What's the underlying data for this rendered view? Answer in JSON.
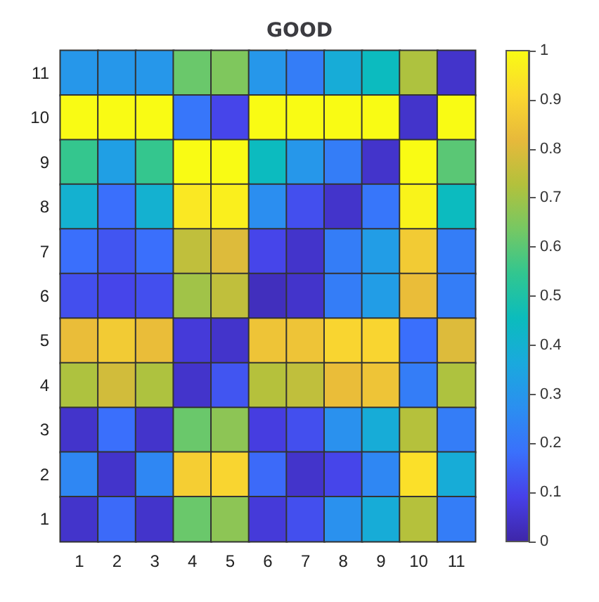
{
  "chart_data": {
    "type": "heatmap",
    "title": "GOOD",
    "categories": [
      "1",
      "2",
      "3",
      "4",
      "5",
      "6",
      "7",
      "8",
      "9",
      "10",
      "11"
    ],
    "y_categories": [
      "11",
      "10",
      "9",
      "8",
      "7",
      "6",
      "5",
      "4",
      "3",
      "2",
      "1"
    ],
    "cells": [
      [
        0.3,
        0.3,
        0.3,
        0.62,
        0.65,
        0.3,
        0.22,
        0.38,
        0.45,
        0.72,
        0.05
      ],
      [
        1,
        1,
        1,
        0.2,
        0.1,
        1,
        1,
        1,
        1,
        0.05,
        1
      ],
      [
        0.55,
        0.33,
        0.55,
        1,
        1,
        0.45,
        0.3,
        0.22,
        0.05,
        1,
        0.6
      ],
      [
        0.4,
        0.18,
        0.4,
        0.95,
        0.97,
        0.27,
        0.12,
        0.05,
        0.2,
        0.98,
        0.45
      ],
      [
        0.18,
        0.13,
        0.18,
        0.75,
        0.8,
        0.1,
        0.05,
        0.22,
        0.32,
        0.87,
        0.22
      ],
      [
        0.12,
        0.1,
        0.12,
        0.7,
        0.75,
        0.03,
        0.05,
        0.22,
        0.32,
        0.83,
        0.22
      ],
      [
        0.83,
        0.87,
        0.83,
        0.07,
        0.05,
        0.85,
        0.85,
        0.9,
        0.9,
        0.18,
        0.8
      ],
      [
        0.72,
        0.78,
        0.72,
        0.05,
        0.13,
        0.73,
        0.75,
        0.83,
        0.85,
        0.22,
        0.72
      ],
      [
        0.05,
        0.18,
        0.05,
        0.62,
        0.67,
        0.08,
        0.12,
        0.28,
        0.38,
        0.73,
        0.22
      ],
      [
        0.25,
        0.05,
        0.25,
        0.88,
        0.9,
        0.17,
        0.05,
        0.1,
        0.25,
        0.93,
        0.38
      ],
      [
        0.05,
        0.17,
        0.05,
        0.62,
        0.67,
        0.07,
        0.12,
        0.28,
        0.38,
        0.73,
        0.22
      ]
    ],
    "clim": [
      0,
      1
    ],
    "cticks": [
      0,
      0.1,
      0.2,
      0.3,
      0.4,
      0.5,
      0.6,
      0.7,
      0.8,
      0.9,
      1
    ]
  }
}
